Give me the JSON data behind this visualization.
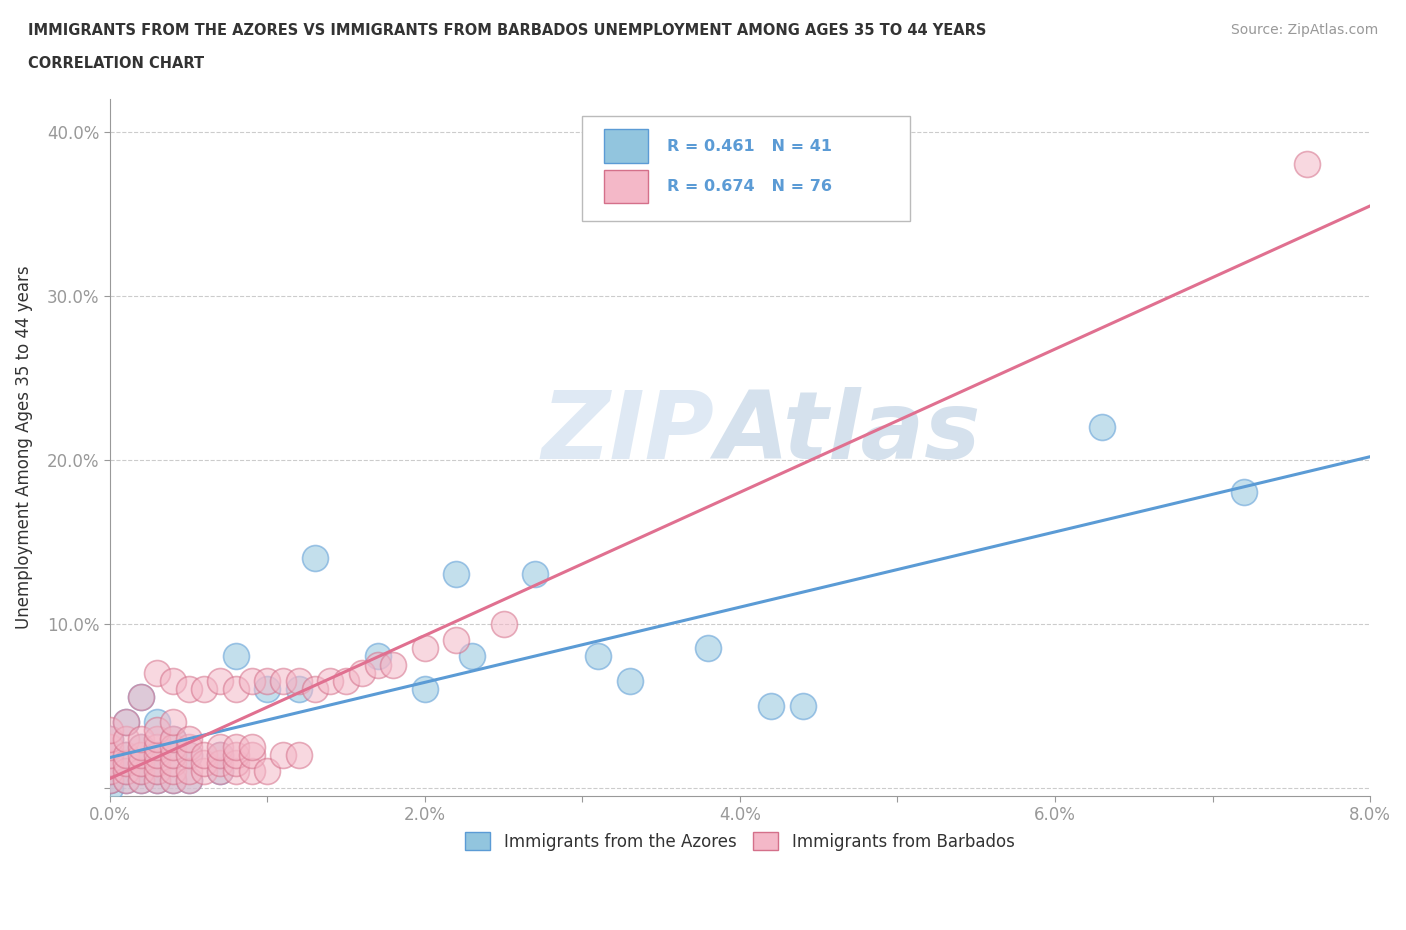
{
  "title_line1": "IMMIGRANTS FROM THE AZORES VS IMMIGRANTS FROM BARBADOS UNEMPLOYMENT AMONG AGES 35 TO 44 YEARS",
  "title_line2": "CORRELATION CHART",
  "source_text": "Source: ZipAtlas.com",
  "ylabel": "Unemployment Among Ages 35 to 44 years",
  "xlim": [
    0.0,
    0.08
  ],
  "ylim": [
    -0.005,
    0.42
  ],
  "xticks": [
    0.0,
    0.01,
    0.02,
    0.03,
    0.04,
    0.05,
    0.06,
    0.07,
    0.08
  ],
  "xticklabels": [
    "0.0%",
    "",
    "2.0%",
    "",
    "4.0%",
    "",
    "6.0%",
    "",
    "8.0%"
  ],
  "yticks": [
    0.0,
    0.1,
    0.2,
    0.3,
    0.4
  ],
  "yticklabels": [
    "",
    "10.0%",
    "20.0%",
    "30.0%",
    "40.0%"
  ],
  "azores_color": "#92c5de",
  "azores_edge_color": "#5b9bd5",
  "barbados_color": "#f4b8c8",
  "barbados_edge_color": "#d4708a",
  "regression_azores_color": "#5b9bd5",
  "regression_barbados_color": "#e07090",
  "legend_label_azores": "Immigrants from the Azores",
  "legend_label_barbados": "Immigrants from Barbados",
  "watermark": "ZIPAtlas",
  "azores_x": [
    0.0,
    0.0,
    0.0,
    0.0,
    0.0,
    0.001,
    0.001,
    0.001,
    0.001,
    0.002,
    0.002,
    0.002,
    0.002,
    0.002,
    0.003,
    0.003,
    0.003,
    0.003,
    0.004,
    0.004,
    0.004,
    0.005,
    0.005,
    0.007,
    0.007,
    0.008,
    0.01,
    0.012,
    0.013,
    0.017,
    0.02,
    0.022,
    0.023,
    0.027,
    0.031,
    0.033,
    0.038,
    0.042,
    0.044,
    0.063,
    0.072
  ],
  "azores_y": [
    0.0,
    0.005,
    0.01,
    0.02,
    0.03,
    0.005,
    0.01,
    0.02,
    0.04,
    0.005,
    0.01,
    0.015,
    0.025,
    0.055,
    0.005,
    0.01,
    0.02,
    0.04,
    0.005,
    0.02,
    0.03,
    0.005,
    0.02,
    0.01,
    0.02,
    0.08,
    0.06,
    0.06,
    0.14,
    0.08,
    0.06,
    0.13,
    0.08,
    0.13,
    0.08,
    0.065,
    0.085,
    0.05,
    0.05,
    0.22,
    0.18
  ],
  "barbados_x": [
    0.0,
    0.0,
    0.0,
    0.0,
    0.0,
    0.0,
    0.0,
    0.001,
    0.001,
    0.001,
    0.001,
    0.001,
    0.001,
    0.002,
    0.002,
    0.002,
    0.002,
    0.002,
    0.002,
    0.002,
    0.003,
    0.003,
    0.003,
    0.003,
    0.003,
    0.003,
    0.003,
    0.003,
    0.004,
    0.004,
    0.004,
    0.004,
    0.004,
    0.004,
    0.004,
    0.004,
    0.005,
    0.005,
    0.005,
    0.005,
    0.005,
    0.005,
    0.006,
    0.006,
    0.006,
    0.006,
    0.007,
    0.007,
    0.007,
    0.007,
    0.007,
    0.008,
    0.008,
    0.008,
    0.008,
    0.008,
    0.009,
    0.009,
    0.009,
    0.009,
    0.01,
    0.01,
    0.011,
    0.011,
    0.012,
    0.012,
    0.013,
    0.014,
    0.015,
    0.016,
    0.017,
    0.018,
    0.02,
    0.022,
    0.025,
    0.076
  ],
  "barbados_y": [
    0.005,
    0.01,
    0.015,
    0.02,
    0.025,
    0.03,
    0.035,
    0.005,
    0.01,
    0.015,
    0.02,
    0.03,
    0.04,
    0.005,
    0.01,
    0.015,
    0.02,
    0.025,
    0.03,
    0.055,
    0.005,
    0.01,
    0.015,
    0.02,
    0.025,
    0.03,
    0.035,
    0.07,
    0.005,
    0.01,
    0.015,
    0.02,
    0.025,
    0.03,
    0.04,
    0.065,
    0.005,
    0.01,
    0.02,
    0.025,
    0.03,
    0.06,
    0.01,
    0.015,
    0.02,
    0.06,
    0.01,
    0.015,
    0.02,
    0.025,
    0.065,
    0.01,
    0.015,
    0.02,
    0.025,
    0.06,
    0.01,
    0.02,
    0.025,
    0.065,
    0.01,
    0.065,
    0.02,
    0.065,
    0.02,
    0.065,
    0.06,
    0.065,
    0.065,
    0.07,
    0.075,
    0.075,
    0.085,
    0.09,
    0.1,
    0.38
  ],
  "background_color": "#ffffff",
  "grid_color": "#cccccc",
  "title_color": "#333333",
  "axis_color": "#999999",
  "tick_color": "#5b9bd5",
  "legend_text_color": "#333333",
  "legend_rn_color": "#5b9bd5"
}
